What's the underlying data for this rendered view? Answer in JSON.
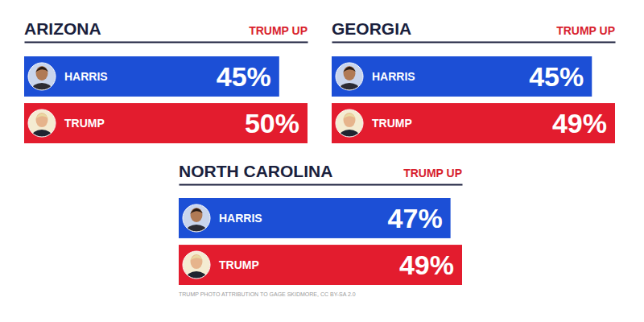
{
  "chart_data": [
    {
      "type": "bar",
      "orientation": "horizontal",
      "title": "ARIZONA",
      "subtitle": "TRUMP UP",
      "categories": [
        "HARRIS",
        "TRUMP"
      ],
      "values": [
        45,
        50
      ],
      "value_labels": [
        "45%",
        "50%"
      ],
      "colors": [
        "#1c4fd6",
        "#e31c2e"
      ],
      "xlim": [
        0,
        50
      ],
      "data_labels": true,
      "tick_labels": "y"
    },
    {
      "type": "bar",
      "orientation": "horizontal",
      "title": "GEORGIA",
      "subtitle": "TRUMP UP",
      "categories": [
        "HARRIS",
        "TRUMP"
      ],
      "values": [
        45,
        49
      ],
      "value_labels": [
        "45%",
        "49%"
      ],
      "colors": [
        "#1c4fd6",
        "#e31c2e"
      ],
      "xlim": [
        0,
        49
      ],
      "data_labels": true,
      "tick_labels": "y"
    },
    {
      "type": "bar",
      "orientation": "horizontal",
      "title": "NORTH CAROLINA",
      "subtitle": "TRUMP UP",
      "categories": [
        "HARRIS",
        "TRUMP"
      ],
      "values": [
        47,
        49
      ],
      "value_labels": [
        "47%",
        "49%"
      ],
      "colors": [
        "#1c4fd6",
        "#e31c2e"
      ],
      "xlim": [
        0,
        49
      ],
      "data_labels": true,
      "tick_labels": "y",
      "annotation": "TRUMP PHOTO ATTRIBUTION TO GAGE SKIDMORE, CC BY-SA 2.0"
    }
  ]
}
